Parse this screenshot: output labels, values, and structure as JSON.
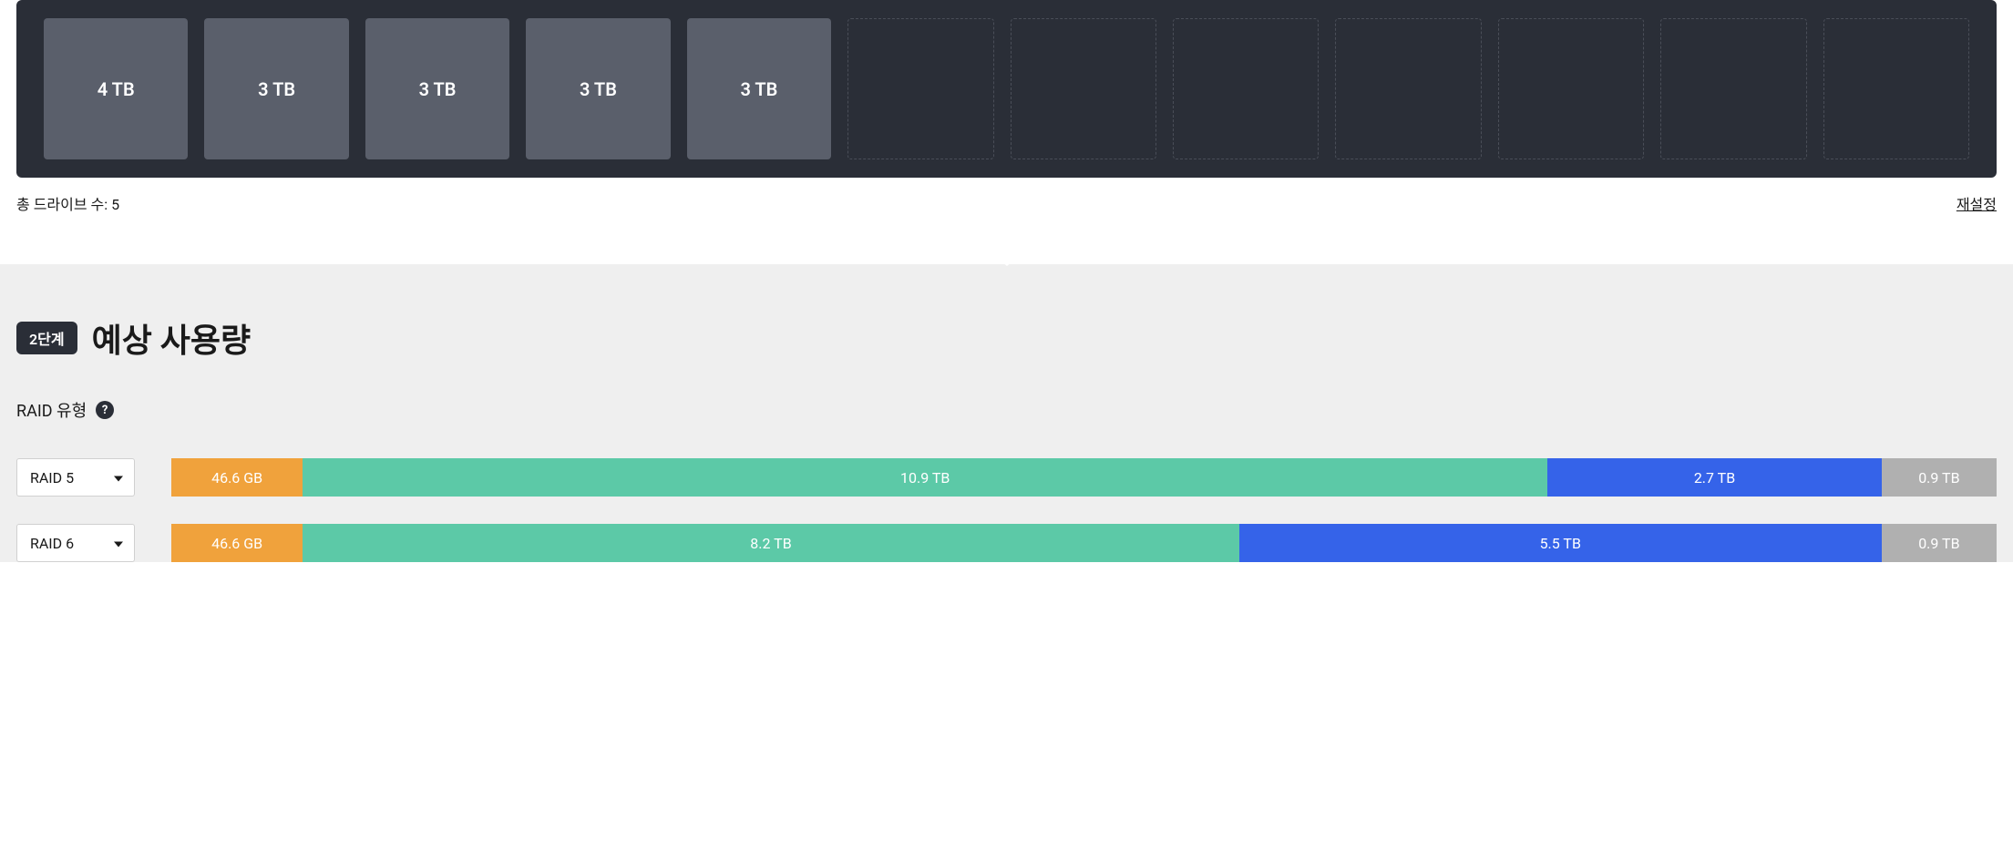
{
  "drive_panel": {
    "total_slots": 12,
    "drives": [
      {
        "label": "4 TB",
        "filled": true
      },
      {
        "label": "3 TB",
        "filled": true
      },
      {
        "label": "3 TB",
        "filled": true
      },
      {
        "label": "3 TB",
        "filled": true
      },
      {
        "label": "3 TB",
        "filled": true
      },
      {
        "label": "",
        "filled": false
      },
      {
        "label": "",
        "filled": false
      },
      {
        "label": "",
        "filled": false
      },
      {
        "label": "",
        "filled": false
      },
      {
        "label": "",
        "filled": false
      },
      {
        "label": "",
        "filled": false
      },
      {
        "label": "",
        "filled": false
      }
    ],
    "count_label": "총 드라이브 수: 5",
    "reset_label": "재설정",
    "colors": {
      "panel_bg": "#2a2e37",
      "filled_bg": "#5a5f6b",
      "empty_border": "#4a4e58",
      "text": "#ffffff"
    }
  },
  "step2": {
    "badge": "2단계",
    "title": "예상 사용량",
    "raid_type_label": "RAID 유형",
    "section_bg": "#efefef"
  },
  "raid_rows": [
    {
      "select_label": "RAID 5",
      "segments": [
        {
          "label": "46.6 GB",
          "percent": 7.2,
          "color": "#f0a23c"
        },
        {
          "label": "10.9 TB",
          "percent": 68.2,
          "color": "#5cc9a7"
        },
        {
          "label": "2.7 TB",
          "percent": 18.3,
          "color": "#3563e9"
        },
        {
          "label": "0.9 TB",
          "percent": 6.3,
          "color": "#b0b0b0"
        }
      ]
    },
    {
      "select_label": "RAID 6",
      "segments": [
        {
          "label": "46.6 GB",
          "percent": 7.2,
          "color": "#f0a23c"
        },
        {
          "label": "8.2 TB",
          "percent": 51.3,
          "color": "#5cc9a7"
        },
        {
          "label": "5.5 TB",
          "percent": 35.2,
          "color": "#3563e9"
        },
        {
          "label": "0.9 TB",
          "percent": 6.3,
          "color": "#b0b0b0"
        }
      ]
    }
  ]
}
